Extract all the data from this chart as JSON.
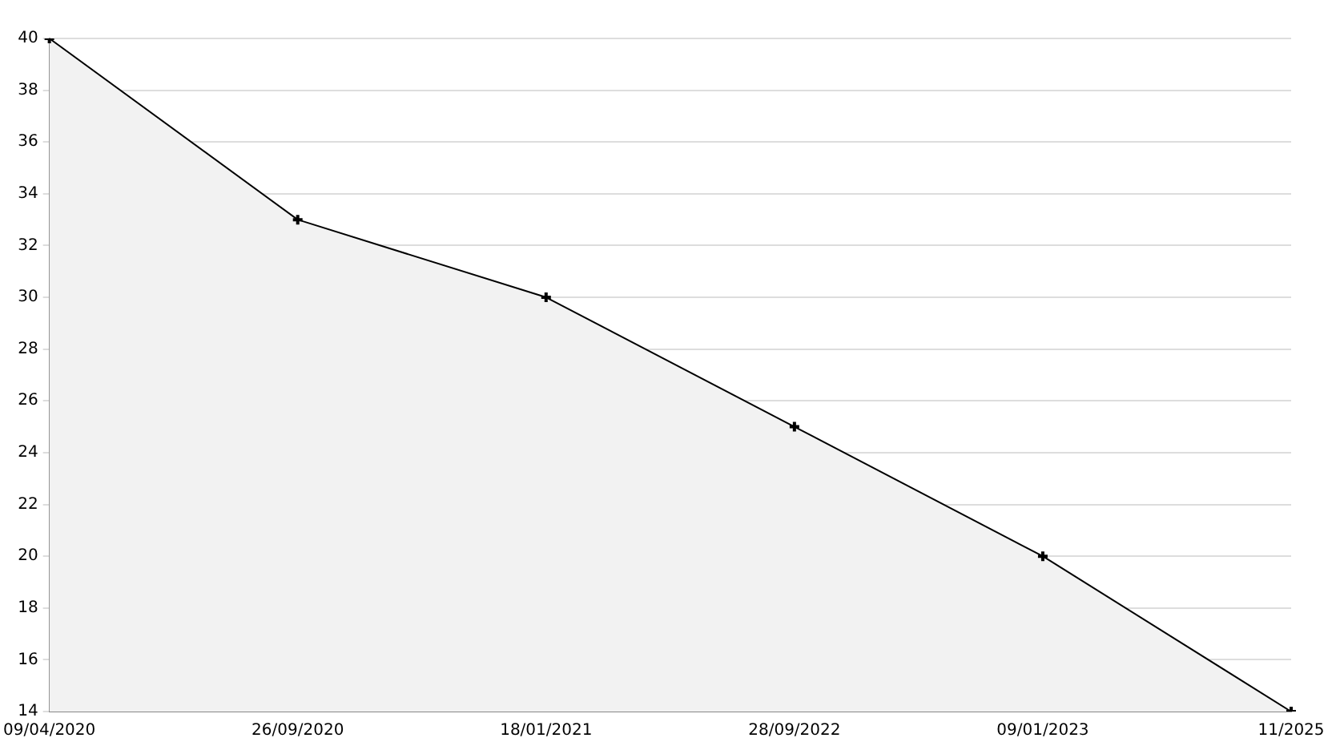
{
  "chart_data": {
    "type": "area",
    "categories": [
      "09/04/2020",
      "26/09/2020",
      "18/01/2021",
      "28/09/2022",
      "09/01/2023",
      "11/2025"
    ],
    "series": [
      {
        "color": "#000000",
        "values": [
          40,
          33,
          30,
          25,
          20,
          14
        ]
      }
    ],
    "ylim": [
      14,
      40
    ],
    "yticks": [
      14,
      16,
      18,
      20,
      22,
      24,
      26,
      28,
      30,
      32,
      34,
      36,
      38,
      40
    ],
    "grid": "y",
    "legend": false,
    "marker": "cross",
    "line_style": "solid"
  }
}
